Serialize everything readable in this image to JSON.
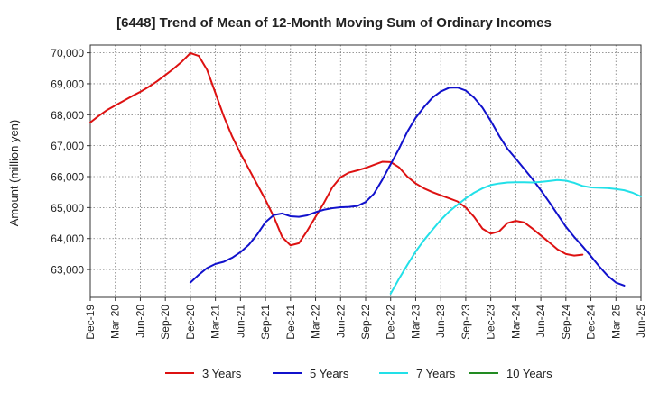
{
  "chart_data": {
    "type": "line",
    "title": "[6448]  Trend of Mean of 12-Month Moving Sum of Ordinary Incomes",
    "xlabel": "",
    "ylabel": "Amount (million yen)",
    "ylim": [
      62100,
      70250
    ],
    "yticks": [
      63000,
      64000,
      65000,
      66000,
      67000,
      68000,
      69000,
      70000
    ],
    "ytick_labels": [
      "63,000",
      "64,000",
      "65,000",
      "66,000",
      "67,000",
      "68,000",
      "69,000",
      "70,000"
    ],
    "xlim": [
      0,
      66
    ],
    "xtick_index": [
      0,
      3,
      6,
      9,
      12,
      15,
      18,
      21,
      24,
      27,
      30,
      33,
      36,
      39,
      42,
      45,
      48,
      51,
      54,
      57,
      60,
      63,
      66
    ],
    "xtick_labels": [
      "Dec-19",
      "Mar-20",
      "Jun-20",
      "Sep-20",
      "Dec-20",
      "Mar-21",
      "Jun-21",
      "Sep-21",
      "Dec-21",
      "Mar-22",
      "Jun-22",
      "Sep-22",
      "Dec-22",
      "Mar-23",
      "Jun-23",
      "Sep-23",
      "Dec-23",
      "Mar-24",
      "Jun-24",
      "Sep-24",
      "Dec-24",
      "Mar-25",
      "Jun-25"
    ],
    "grid": true,
    "legend_position": "bottom",
    "series": [
      {
        "name": "3 Years",
        "color": "#dd1111",
        "start_index": 0,
        "values": [
          67750,
          67960,
          68150,
          68300,
          68450,
          68600,
          68740,
          68900,
          69080,
          69280,
          69490,
          69720,
          69990,
          69900,
          69450,
          68700,
          67950,
          67300,
          66750,
          66250,
          65750,
          65250,
          64700,
          64050,
          63780,
          63850,
          64250,
          64700,
          65150,
          65650,
          65980,
          66130,
          66200,
          66280,
          66380,
          66480,
          66470,
          66300,
          66000,
          65780,
          65620,
          65500,
          65400,
          65300,
          65200,
          65000,
          64700,
          64320,
          64160,
          64230,
          64500,
          64570,
          64520,
          64320,
          64100,
          63880,
          63650,
          63500,
          63450,
          63480
        ]
      },
      {
        "name": "5 Years",
        "color": "#1111cc",
        "start_index": 12,
        "values": [
          62580,
          62830,
          63050,
          63180,
          63250,
          63380,
          63560,
          63800,
          64130,
          64530,
          64760,
          64810,
          64720,
          64700,
          64750,
          64850,
          64930,
          64980,
          65010,
          65020,
          65050,
          65180,
          65450,
          65900,
          66400,
          66900,
          67450,
          67900,
          68250,
          68550,
          68750,
          68870,
          68880,
          68780,
          68550,
          68230,
          67800,
          67320,
          66900,
          66580,
          66250,
          65920,
          65560,
          65180,
          64780,
          64380,
          64050,
          63750,
          63430,
          63100,
          62800,
          62580,
          62480
        ]
      },
      {
        "name": "7 Years",
        "color": "#22e0e8",
        "start_index": 36,
        "values": [
          62220,
          62700,
          63150,
          63580,
          63950,
          64280,
          64600,
          64870,
          65090,
          65300,
          65480,
          65620,
          65730,
          65780,
          65810,
          65820,
          65820,
          65810,
          65830,
          65860,
          65890,
          65870,
          65800,
          65700,
          65650,
          65640,
          65630,
          65600,
          65560,
          65480,
          65360
        ]
      },
      {
        "name": "10 Years",
        "color": "#228b22",
        "start_index": 0,
        "values": []
      }
    ]
  }
}
